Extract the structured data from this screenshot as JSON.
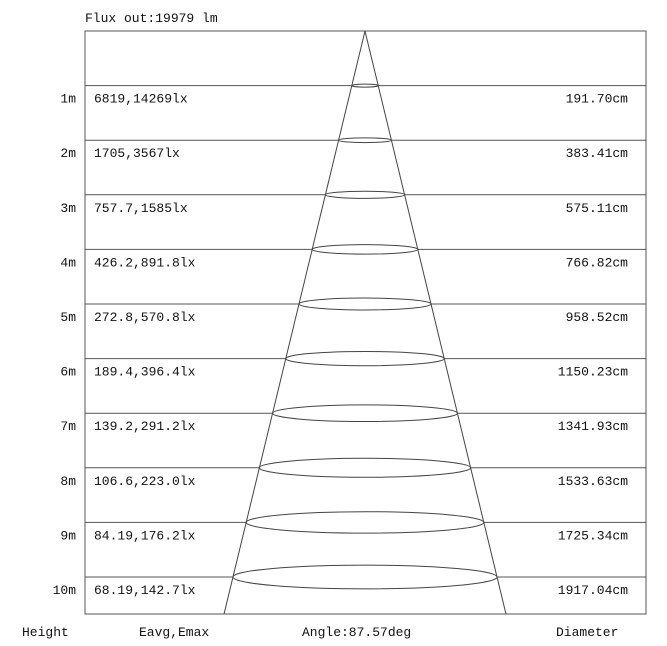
{
  "flux_out": "Flux out:19979 lm",
  "footer": {
    "height_label": "Height",
    "illuminance_label": "Eavg,Emax",
    "angle_label": "Angle:87.57deg",
    "diameter_label": "Diameter"
  },
  "beam_angle_deg": 87.57,
  "rows": [
    {
      "height": "1m",
      "illuminance": "6819,14269lx",
      "diameter": "191.70cm"
    },
    {
      "height": "2m",
      "illuminance": "1705,3567lx",
      "diameter": "383.41cm"
    },
    {
      "height": "3m",
      "illuminance": "757.7,1585lx",
      "diameter": "575.11cm"
    },
    {
      "height": "4m",
      "illuminance": "426.2,891.8lx",
      "diameter": "766.82cm"
    },
    {
      "height": "5m",
      "illuminance": "272.8,570.8lx",
      "diameter": "958.52cm"
    },
    {
      "height": "6m",
      "illuminance": "189.4,396.4lx",
      "diameter": "1150.23cm"
    },
    {
      "height": "7m",
      "illuminance": "139.2,291.2lx",
      "diameter": "1341.93cm"
    },
    {
      "height": "8m",
      "illuminance": "106.6,223.0lx",
      "diameter": "1533.63cm"
    },
    {
      "height": "9m",
      "illuminance": "84.19,176.2lx",
      "diameter": "1725.34cm"
    },
    {
      "height": "10m",
      "illuminance": "68.19,142.7lx",
      "diameter": "1917.04cm"
    }
  ]
}
